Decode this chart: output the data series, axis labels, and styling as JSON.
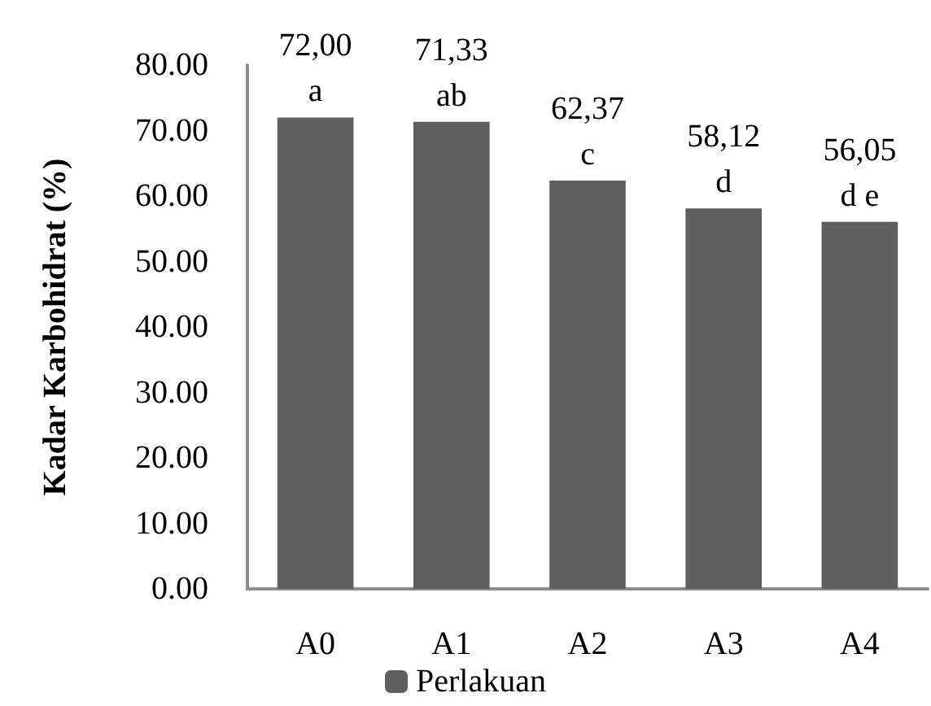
{
  "chart_data": {
    "type": "bar",
    "ylabel": "Kadar Karbohidrat (%)",
    "categories": [
      "A0",
      "A1",
      "A2",
      "A3",
      "A4"
    ],
    "series": [
      {
        "name": "Perlakuan",
        "color": "#5f5f5f",
        "values": [
          72.0,
          71.33,
          62.37,
          58.12,
          56.05
        ],
        "value_labels": [
          "72,00",
          "71,33",
          "62,37",
          "58,12",
          "56,05"
        ]
      }
    ],
    "ylim": [
      0,
      80
    ],
    "yticks": [
      {
        "value": 0,
        "label": "0.00"
      },
      {
        "value": 10,
        "label": "10.00"
      },
      {
        "value": 20,
        "label": "20.00"
      },
      {
        "value": 30,
        "label": "30.00"
      },
      {
        "value": 40,
        "label": "40.00"
      },
      {
        "value": 50,
        "label": "50.00"
      },
      {
        "value": 60,
        "label": "60.00"
      },
      {
        "value": 70,
        "label": "70.00"
      },
      {
        "value": 80,
        "label": "80.00"
      }
    ],
    "annotations": [
      {
        "text": "a",
        "x": "A0",
        "y": 72.0
      },
      {
        "text": "ab",
        "x": "A1",
        "y": 71.33
      },
      {
        "text": "c",
        "x": "A2",
        "y": 62.37
      },
      {
        "text": "d",
        "x": "A3",
        "y": 58.12
      },
      {
        "text": "d e",
        "x": "A4",
        "y": 56.05
      }
    ],
    "grid": false,
    "legend": "bottom"
  }
}
